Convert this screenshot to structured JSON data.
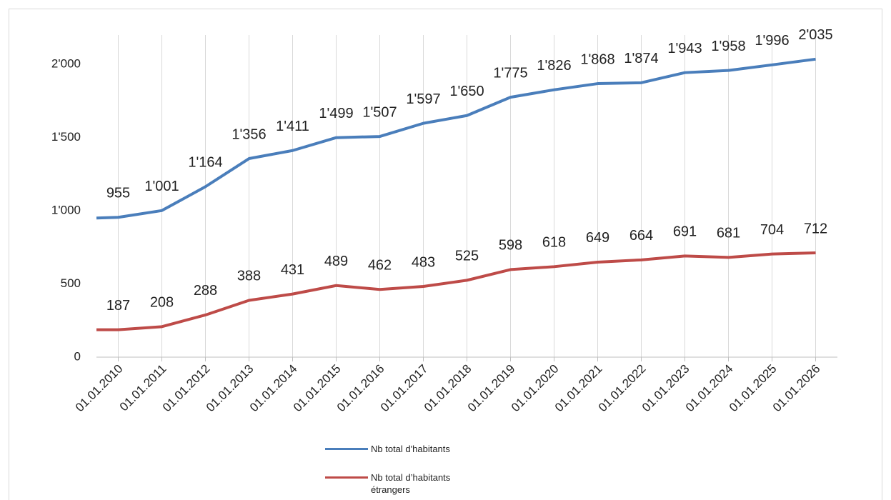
{
  "chart_data": {
    "type": "line",
    "x": [
      2009.5,
      2010,
      2011,
      2012,
      2013,
      2014,
      2015,
      2016,
      2017,
      2018,
      2019,
      2020,
      2021,
      2022,
      2023,
      2024,
      2025,
      2026
    ],
    "xlim": [
      2009.5,
      2026.5
    ],
    "xticks": [
      {
        "value": 2010,
        "label": "01.01.2010"
      },
      {
        "value": 2011,
        "label": "01.01.2011"
      },
      {
        "value": 2012,
        "label": "01.01.2012"
      },
      {
        "value": 2013,
        "label": "01.01.2013"
      },
      {
        "value": 2014,
        "label": "01.01.2014"
      },
      {
        "value": 2015,
        "label": "01.01.2015"
      },
      {
        "value": 2016,
        "label": "01.01.2016"
      },
      {
        "value": 2017,
        "label": "01.01.2017"
      },
      {
        "value": 2018,
        "label": "01.01.2018"
      },
      {
        "value": 2019,
        "label": "01.01.2019"
      },
      {
        "value": 2020,
        "label": "01.01.2020"
      },
      {
        "value": 2021,
        "label": "01.01.2021"
      },
      {
        "value": 2022,
        "label": "01.01.2022"
      },
      {
        "value": 2023,
        "label": "01.01.2023"
      },
      {
        "value": 2024,
        "label": "01.01.2024"
      },
      {
        "value": 2025,
        "label": "01.01.2025"
      },
      {
        "value": 2026,
        "label": "01.01.2026"
      }
    ],
    "ylim": [
      0,
      2200
    ],
    "yticks": [
      0,
      500,
      {
        "value": 1000,
        "label": "1'000"
      },
      {
        "value": 1500,
        "label": "1'500"
      },
      {
        "value": 2000,
        "label": "2'000"
      }
    ],
    "grid": true,
    "legend": "bottom",
    "series": [
      {
        "name": "Nb total d'habitants",
        "color": "#4a7ebb",
        "values": [
          950,
          955,
          1001,
          1164,
          1356,
          1411,
          1499,
          1507,
          1597,
          1650,
          1775,
          1826,
          1868,
          1874,
          1943,
          1958,
          1996,
          2035
        ],
        "value_labels": [
          null,
          "955",
          "1'001",
          "1'164",
          "1'356",
          "1'411",
          "1'499",
          "1'507",
          "1'597",
          "1'650",
          "1'775",
          "1'826",
          "1'868",
          "1'874",
          "1'943",
          "1'958",
          "1'996",
          "2'035"
        ]
      },
      {
        "name": "Nb total d’habitants étrangers",
        "color": "#be4b48",
        "values": [
          187,
          187,
          208,
          288,
          388,
          431,
          489,
          462,
          483,
          525,
          598,
          618,
          649,
          664,
          691,
          681,
          704,
          712
        ],
        "value_labels": [
          null,
          "187",
          "208",
          "288",
          "388",
          "431",
          "489",
          "462",
          "483",
          "525",
          "598",
          "618",
          "649",
          "664",
          "691",
          "681",
          "704",
          "712"
        ]
      }
    ]
  }
}
